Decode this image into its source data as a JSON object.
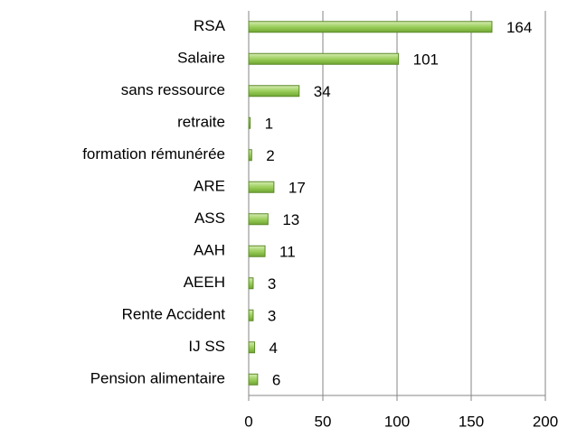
{
  "chart_data": {
    "type": "barh",
    "categories": [
      "RSA",
      "Salaire",
      "sans ressource",
      "retraite",
      "formation rémunérée",
      "ARE",
      "ASS",
      "AAH",
      "AEEH",
      "Rente Accident",
      "IJ SS",
      "Pension alimentaire"
    ],
    "values": [
      164,
      101,
      34,
      1,
      2,
      17,
      13,
      11,
      3,
      3,
      4,
      6
    ],
    "color": "#8cc152",
    "xlim": [
      0,
      200
    ],
    "xticks": [
      0,
      50,
      100,
      150,
      200
    ],
    "grid": true
  }
}
